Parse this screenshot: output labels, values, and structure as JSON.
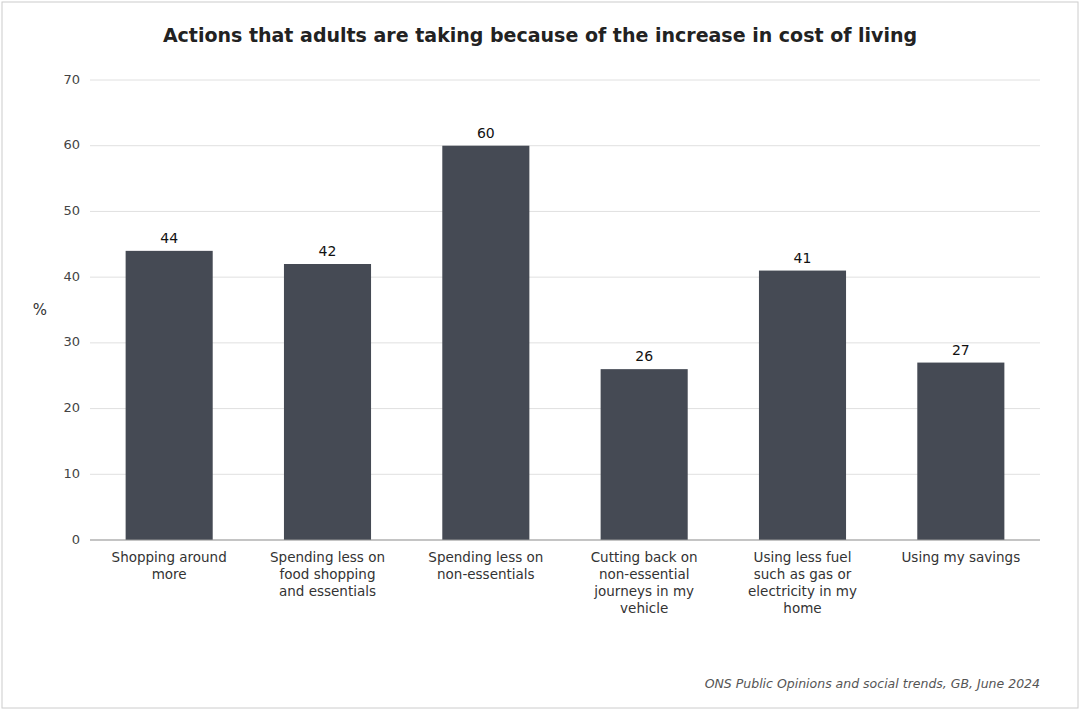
{
  "chart_data": {
    "type": "bar",
    "title": "Actions that adults are taking because of the increase in cost of living",
    "categories": [
      "Shopping around\nmore",
      "Spending less on\nfood shopping\nand essentials",
      "Spending less on\nnon-essentials",
      "Cutting back on\nnon-essential\njourneys in my\nvehicle",
      "Using less fuel\nsuch as gas or\nelectricity in my\nhome",
      "Using my savings"
    ],
    "values": [
      44,
      42,
      60,
      26,
      41,
      27
    ],
    "color": "#454a54",
    "ylabel": "%",
    "ylim": [
      0,
      70
    ],
    "yticks": [
      0,
      10,
      20,
      30,
      40,
      50,
      60,
      70
    ],
    "grid": true,
    "data_labels": true,
    "annotations": [
      "ONS Public Opinions and social trends, GB, June 2024"
    ]
  }
}
